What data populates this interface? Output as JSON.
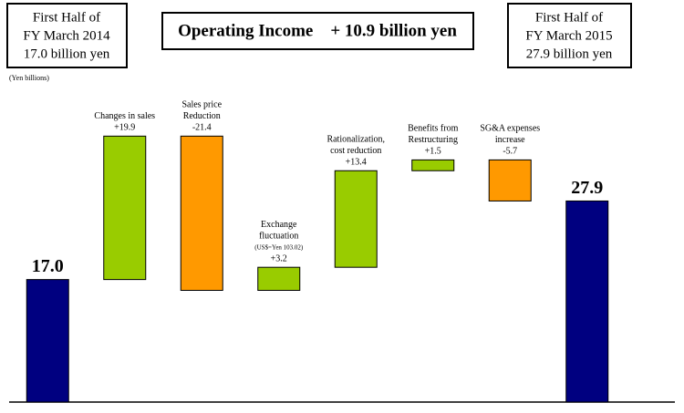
{
  "chart_data": {
    "type": "waterfall",
    "title": "Operating Income　+ 10.9 billion yen",
    "start_note": [
      "First Half of",
      "FY March 2014",
      "17.0 billion yen"
    ],
    "end_note": [
      "First Half of",
      "FY March 2015",
      "27.9 billion yen"
    ],
    "unit_label": "(Yen billions)",
    "categories": [
      null,
      [
        "Changes in sales"
      ],
      [
        "Sales price",
        "Reduction"
      ],
      [
        "Exchange",
        "fluctuation",
        "(US$=Yen 103.02)"
      ],
      [
        "Rationalization,",
        "cost reduction"
      ],
      [
        "Benefits from",
        "Restructuring"
      ],
      [
        "SG&A expenses",
        "increase"
      ],
      null
    ],
    "values": [
      17.0,
      19.9,
      -21.4,
      3.2,
      13.4,
      1.5,
      -5.7,
      27.9
    ],
    "value_labels": [
      "17.0",
      "+19.9",
      "-21.4",
      "+3.2",
      "+13.4",
      "+1.5",
      "-5.7",
      "27.9"
    ],
    "total_color": "#000080",
    "increase_color": "#99cc00",
    "decrease_color": "#ff9900",
    "ylim": [
      0,
      42
    ]
  }
}
